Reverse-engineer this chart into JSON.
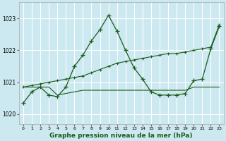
{
  "xlabel": "Graphe pression niveau de la mer (hPa)",
  "background_color": "#cce8f0",
  "grid_color": "#ffffff",
  "line_color": "#1a5c1a",
  "xlim": [
    -0.5,
    23.5
  ],
  "ylim": [
    1019.7,
    1023.5
  ],
  "yticks": [
    1020,
    1021,
    1022,
    1023
  ],
  "xticks": [
    0,
    1,
    2,
    3,
    4,
    5,
    6,
    7,
    8,
    9,
    10,
    11,
    12,
    13,
    14,
    15,
    16,
    17,
    18,
    19,
    20,
    21,
    22,
    23
  ],
  "series_peak": {
    "x": [
      0,
      1,
      2,
      3,
      4,
      5,
      6,
      7,
      8,
      9,
      10,
      11,
      12,
      13,
      14,
      15,
      16,
      17,
      18,
      19,
      20,
      21,
      22,
      23
    ],
    "y": [
      1020.35,
      1020.7,
      1020.85,
      1020.6,
      1020.55,
      1020.85,
      1021.5,
      1021.85,
      1022.3,
      1022.65,
      1023.1,
      1022.6,
      1022.0,
      1021.45,
      1021.1,
      1020.7,
      1020.6,
      1020.6,
      1020.6,
      1020.65,
      1021.05,
      1021.1,
      1022.05,
      1022.75
    ]
  },
  "series_flat": {
    "x": [
      0,
      1,
      2,
      3,
      4,
      5,
      6,
      7,
      8,
      9,
      10,
      11,
      12,
      13,
      14,
      15,
      16,
      17,
      18,
      19,
      20,
      21,
      22,
      23
    ],
    "y": [
      1020.85,
      1020.85,
      1020.85,
      1020.85,
      1020.6,
      1020.65,
      1020.7,
      1020.75,
      1020.75,
      1020.75,
      1020.75,
      1020.75,
      1020.75,
      1020.75,
      1020.75,
      1020.75,
      1020.75,
      1020.75,
      1020.75,
      1020.75,
      1020.85,
      1020.85,
      1020.85,
      1020.85
    ]
  },
  "series_trend": {
    "x": [
      0,
      1,
      2,
      3,
      4,
      5,
      6,
      7,
      8,
      9,
      10,
      11,
      12,
      13,
      14,
      15,
      16,
      17,
      18,
      19,
      20,
      21,
      22,
      23
    ],
    "y": [
      1020.85,
      1020.9,
      1020.95,
      1021.0,
      1021.05,
      1021.1,
      1021.15,
      1021.2,
      1021.3,
      1021.4,
      1021.5,
      1021.6,
      1021.65,
      1021.7,
      1021.75,
      1021.8,
      1021.85,
      1021.9,
      1021.9,
      1021.95,
      1022.0,
      1022.05,
      1022.1,
      1022.8
    ]
  }
}
